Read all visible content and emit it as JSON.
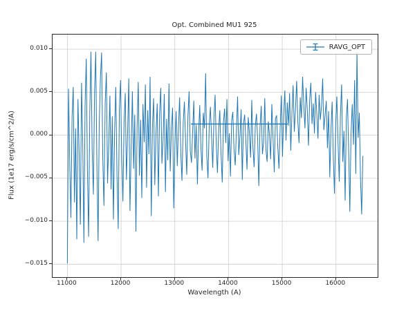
{
  "title": "Opt. Combined MU1 925",
  "xlabel": "Wavelength (A)",
  "ylabel": "Flux (1e17 erg/s/cm^2/A)",
  "legend": {
    "label": "RAVG_OPT",
    "position": "upper right"
  },
  "colors": {
    "line": "#1f77b4",
    "grid": "#cccccc",
    "spine": "#262626",
    "text": "#262626"
  },
  "chart_data": {
    "type": "line",
    "title": "Opt. Combined MU1 925",
    "xlabel": "Wavelength (A)",
    "ylabel": "Flux (1e17 erg/s/cm^2/A)",
    "legend_entries": [
      "RAVG_OPT"
    ],
    "legend_position": "upper right",
    "grid": true,
    "xlim": [
      10725,
      16775
    ],
    "ylim": [
      -0.0165,
      0.0117
    ],
    "x_ticks": [
      11000,
      12000,
      13000,
      14000,
      15000,
      16000
    ],
    "x_tick_labels": [
      "11000",
      "12000",
      "13000",
      "14000",
      "15000",
      "16000"
    ],
    "y_ticks": [
      0.01,
      0.005,
      0.0,
      -0.005,
      -0.01,
      -0.015
    ],
    "y_tick_labels": [
      "0.010",
      "0.005",
      "0.000",
      "−0.005",
      "−0.010",
      "−0.015"
    ],
    "avg_segment": {
      "x1": 13300,
      "x2": 15100,
      "y": 0.0013
    },
    "series": [
      {
        "name": "RAVG_OPT",
        "x_start": 11000,
        "x_end": 16500,
        "y_scale": 0.001,
        "y_milli": [
          -14.9,
          5.4,
          -3.2,
          -9.6,
          2.1,
          5.6,
          -7.8,
          0.8,
          -12.1,
          4.2,
          -2.5,
          -10.4,
          6.1,
          -0.6,
          -12.5,
          3.4,
          8.9,
          -4.1,
          -11.8,
          2.6,
          9.7,
          -1.9,
          -6.9,
          5.0,
          9.7,
          -3.5,
          -12.3,
          1.3,
          6.7,
          9.6,
          -2.7,
          -8.2,
          3.8,
          7.3,
          -5.6,
          -0.9,
          4.6,
          -6.3,
          2.2,
          -9.8,
          0.5,
          5.6,
          -4.4,
          -10.9,
          3.1,
          6.4,
          -2.8,
          -7.7,
          1.6,
          4.9,
          -5.2,
          0.3,
          6.6,
          -8.8,
          -1.4,
          5.1,
          -3.9,
          2.4,
          -11.2,
          0.9,
          6.2,
          -4.7,
          1.8,
          -7.3,
          3.6,
          -0.8,
          5.9,
          -6.1,
          2.9,
          -2.2,
          6.8,
          -9.4,
          1.1,
          4.3,
          -5.8,
          0.2,
          3.7,
          -7.1,
          2.5,
          5.5,
          -3.3,
          -0.5,
          4.8,
          -6.6,
          1.9,
          -2.9,
          6.0,
          -4.2,
          0.7,
          3.2,
          -8.5,
          -1.1,
          2.8,
          -3.6,
          0.9,
          4.4,
          -2.1,
          -5.3,
          1.5,
          3.9,
          -0.7,
          -4.6,
          2.2,
          5.1,
          -1.8,
          -3.2,
          0.4,
          4.0,
          -2.7,
          1.2,
          -5.7,
          0.0,
          3.5,
          -1.5,
          -4.1,
          2.6,
          0.8,
          7.2,
          -2.4,
          -5.0,
          1.0,
          3.3,
          -0.3,
          -3.8,
          2.0,
          4.7,
          -1.2,
          -4.4,
          0.6,
          2.9,
          -2.0,
          -5.5,
          1.4,
          3.1,
          -0.9,
          4.2,
          -3.0,
          0.2,
          -4.8,
          1.7,
          2.7,
          -1.6,
          -3.5,
          0.5,
          4.5,
          -2.3,
          -0.1,
          3.0,
          -5.2,
          1.3,
          2.4,
          -0.6,
          -4.0,
          2.1,
          0.3,
          -2.6,
          4.1,
          -1.4,
          -3.7,
          1.1,
          2.5,
          -0.4,
          -5.9,
          0.9,
          3.4,
          -2.2,
          -0.8,
          4.3,
          -1.7,
          -3.1,
          1.6,
          0.1,
          -2.8,
          3.6,
          -0.2,
          -4.3,
          1.9,
          2.3,
          -1.3,
          -3.9,
          0.7,
          4.6,
          -2.5,
          2.3,
          5.2,
          -0.6,
          3.8,
          1.1,
          4.9,
          -1.8,
          2.7,
          5.8,
          0.4,
          3.1,
          6.3,
          1.6,
          -0.9,
          4.4,
          2.0,
          6.8,
          3.5,
          0.8,
          5.5,
          2.9,
          -1.2,
          4.1,
          6.1,
          1.3,
          3.7,
          0.2,
          5.0,
          2.5,
          -0.4,
          4.7,
          1.8,
          3.3,
          6.6,
          0.6,
          2.2,
          4.0,
          -1.5,
          2.8,
          -4.9,
          0.7,
          3.9,
          -2.6,
          -6.8,
          1.2,
          4.5,
          -0.8,
          -5.4,
          2.4,
          5.9,
          -3.1,
          0.5,
          -7.6,
          1.9,
          4.2,
          -2.0,
          -8.9,
          0.1,
          3.6,
          -1.1,
          6.4,
          -4.5,
          9.7,
          -0.3,
          2.6,
          -5.1,
          -9.2,
          -2.4
        ]
      }
    ]
  }
}
